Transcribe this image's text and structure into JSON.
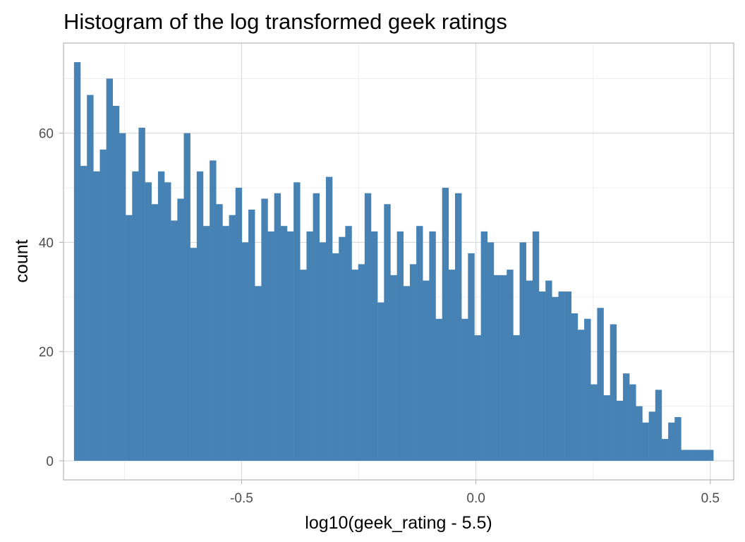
{
  "chart_data": {
    "type": "bar",
    "title": "Histogram of the log transformed geek ratings",
    "xlabel": "log10(geek_rating - 5.5)",
    "ylabel": "count",
    "xlim": [
      -0.88,
      0.55
    ],
    "ylim": [
      -3.5,
      76.5
    ],
    "x_ticks": [
      -0.5,
      0.0,
      0.5
    ],
    "x_tick_labels": [
      "-0.5",
      "0.0",
      "0.5"
    ],
    "y_ticks": [
      0,
      20,
      40,
      60
    ],
    "y_tick_labels": [
      "0",
      "20",
      "40",
      "60"
    ],
    "grid": true,
    "bar_color": "#4682b4",
    "bin_width": 0.01378,
    "bin_start": -0.8576,
    "counts": [
      73,
      54,
      67,
      53,
      57,
      70,
      65,
      60,
      45,
      53,
      61,
      51,
      47,
      53,
      51,
      44,
      48,
      60,
      39,
      53,
      43,
      55,
      47,
      43,
      45,
      50,
      40,
      46,
      32,
      48,
      42,
      49,
      43,
      42,
      51,
      35,
      42,
      49,
      40,
      52,
      38,
      41,
      43,
      35,
      36,
      49,
      42,
      29,
      47,
      34,
      42,
      32,
      36,
      43,
      33,
      42,
      26,
      50,
      35,
      49,
      26,
      38,
      23,
      42,
      40,
      34,
      34,
      35,
      23,
      40,
      33,
      42,
      31,
      33,
      30,
      31,
      31,
      27,
      24,
      26,
      14,
      28,
      12,
      25,
      11,
      16,
      14,
      10,
      7,
      9,
      13,
      4,
      7,
      8,
      2,
      2,
      2,
      2,
      2,
      0,
      0,
      0,
      0,
      0,
      1
    ]
  }
}
